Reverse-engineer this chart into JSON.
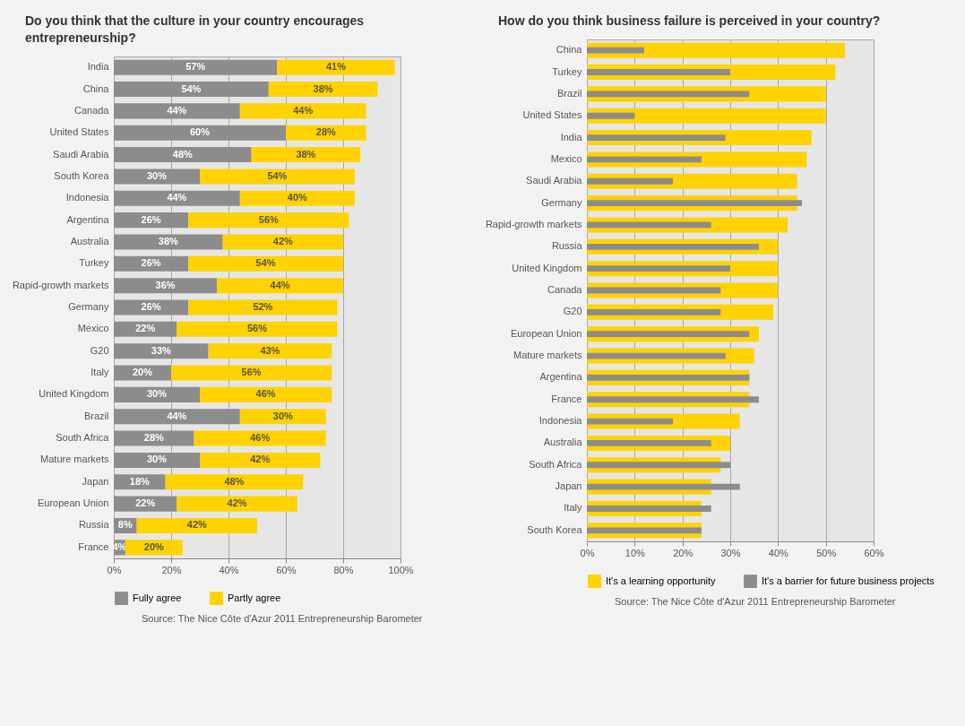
{
  "chart_data": [
    {
      "type": "bar",
      "orientation": "horizontal",
      "stacked": true,
      "title": "Do you think that the culture in your country encourages entrepreneurship?",
      "categories": [
        "India",
        "China",
        "Canada",
        "United States",
        "Saudi Arabia",
        "South Korea",
        "Indonesia",
        "Argentina",
        "Australia",
        "Turkey",
        "Rapid-growth markets",
        "Germany",
        "Mexico",
        "G20",
        "Italy",
        "United Kingdom",
        "Brazil",
        "South Africa",
        "Mature markets",
        "Japan",
        "European Union",
        "Russia",
        "France"
      ],
      "series": [
        {
          "name": "Fully agree",
          "color": "#8c8c8c",
          "values": [
            57,
            54,
            44,
            60,
            48,
            30,
            44,
            26,
            38,
            26,
            36,
            26,
            22,
            33,
            20,
            30,
            44,
            28,
            30,
            18,
            22,
            8,
            4
          ],
          "value_labels": [
            "57%",
            "54%",
            "44%",
            "60%",
            "48%",
            "30%",
            "44%",
            "26%",
            "38%",
            "26%",
            "36%",
            "26%",
            "22%",
            "33%",
            "20%",
            "30%",
            "44%",
            "28%",
            "30%",
            "18%",
            "22%",
            "8%",
            "4%"
          ]
        },
        {
          "name": "Partly agree",
          "color": "#ffd200",
          "values": [
            41,
            38,
            44,
            28,
            38,
            54,
            40,
            56,
            42,
            54,
            44,
            52,
            56,
            43,
            56,
            46,
            30,
            46,
            42,
            48,
            42,
            42,
            20
          ],
          "value_labels": [
            "41%",
            "38%",
            "44%",
            "28%",
            "38%",
            "54%",
            "40%",
            "56%",
            "42%",
            "54%",
            "44%",
            "52%",
            "56%",
            "43%",
            "56%",
            "46%",
            "30%",
            "46%",
            "42%",
            "48%",
            "42%",
            "42%",
            "20%"
          ]
        }
      ],
      "xlim": [
        0,
        100
      ],
      "xticks": [
        {
          "value": 0,
          "label": "0%"
        },
        {
          "value": 20,
          "label": "20%"
        },
        {
          "value": 40,
          "label": "40%"
        },
        {
          "value": 60,
          "label": "60%"
        },
        {
          "value": 80,
          "label": "80%"
        },
        {
          "value": 100,
          "label": "100%"
        }
      ],
      "grid": "x",
      "legend": "bottom",
      "annotations": [
        "Source: The Nice Côte d'Azur 2011 Entrepreneurship Barometer"
      ]
    },
    {
      "type": "bar",
      "orientation": "horizontal",
      "title": "How do you think business failure is perceived in your country?",
      "categories": [
        "China",
        "Turkey",
        "Brazil",
        "United States",
        "India",
        "Mexico",
        "Saudi Arabia",
        "Germany",
        "Rapid-growth markets",
        "Russia",
        "United Kingdom",
        "Canada",
        "G20",
        "European Union",
        "Mature markets",
        "Argentina",
        "France",
        "Indonesia",
        "Australia",
        "South Africa",
        "Japan",
        "Italy",
        "South Korea"
      ],
      "series": [
        {
          "name": "It's a learning opportunity",
          "color": "#ffd200",
          "values": [
            54,
            52,
            50,
            50,
            47,
            46,
            44,
            44,
            42,
            40,
            40,
            40,
            39,
            36,
            35,
            34,
            34,
            32,
            30,
            28,
            26,
            24,
            24
          ]
        },
        {
          "name": "It's a barrier for future business projects",
          "color": "#8c8c8c",
          "values": [
            12,
            30,
            34,
            10,
            29,
            24,
            18,
            45,
            26,
            36,
            30,
            28,
            28,
            34,
            29,
            34,
            36,
            18,
            26,
            30,
            32,
            26,
            24
          ]
        }
      ],
      "xlim": [
        0,
        60
      ],
      "xticks": [
        {
          "value": 0,
          "label": "0%"
        },
        {
          "value": 10,
          "label": "10%"
        },
        {
          "value": 20,
          "label": "20%"
        },
        {
          "value": 30,
          "label": "30%"
        },
        {
          "value": 40,
          "label": "40%"
        },
        {
          "value": 50,
          "label": "50%"
        },
        {
          "value": 60,
          "label": "60%"
        }
      ],
      "grid": "x",
      "legend": "bottom",
      "annotations": [
        "Source: The Nice Côte d'Azur 2011 Entrepreneurship Barometer"
      ]
    }
  ]
}
